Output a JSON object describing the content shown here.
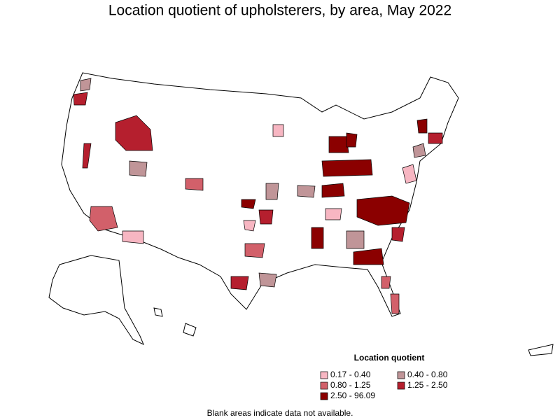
{
  "title": "Location quotient of upholsterers, by area, May 2022",
  "legend": {
    "title": "Location quotient",
    "items": [
      {
        "label": "0.17 - 0.40",
        "color": "#f7b6c2"
      },
      {
        "label": "0.40 - 0.80",
        "color": "#c09598"
      },
      {
        "label": "0.80 - 1.25",
        "color": "#d2606a"
      },
      {
        "label": "1.25 - 2.50",
        "color": "#b51f2e"
      },
      {
        "label": "2.50 - 96.09",
        "color": "#8b0000"
      }
    ]
  },
  "note": "Blank areas indicate data not available."
}
